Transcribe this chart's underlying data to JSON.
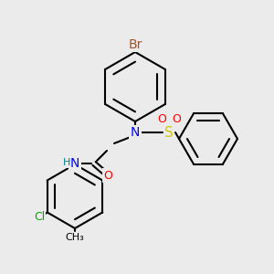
{
  "bg_color": "#ebebeb",
  "bond_color": "#000000",
  "bond_lw": 1.5,
  "atom_colors": {
    "Br": "#a0522d",
    "N": "#0000ff",
    "S": "#cccc00",
    "O": "#ff0000",
    "Cl": "#00aa00",
    "H": "#008080",
    "C_implicit": "#000000"
  },
  "font_size": 9,
  "font_size_small": 8
}
